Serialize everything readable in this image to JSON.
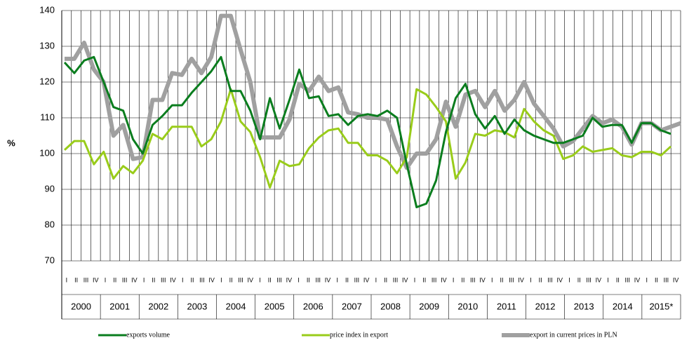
{
  "chart_data": {
    "type": "line",
    "y_label": "%",
    "categories": [
      "I",
      "II",
      "III",
      "IV",
      "I",
      "II",
      "III",
      "IV",
      "I",
      "II",
      "III",
      "IV",
      "I",
      "II",
      "III",
      "IV",
      "I",
      "II",
      "III",
      "IV",
      "I",
      "II",
      "III",
      "IV",
      "I",
      "II",
      "III",
      "IV",
      "I",
      "II",
      "III",
      "IV",
      "I",
      "II",
      "III",
      "IV",
      "I",
      "II",
      "III",
      "IV",
      "I",
      "II",
      "III",
      "IV",
      "I",
      "II",
      "III",
      "IV",
      "I",
      "II",
      "III",
      "IV",
      "I",
      "II",
      "III",
      "IV",
      "I",
      "II",
      "III",
      "IV",
      "I",
      "II",
      "III",
      "IV"
    ],
    "years": [
      "2000",
      "2001",
      "2002",
      "2003",
      "2004",
      "2005",
      "2006",
      "2007",
      "2008",
      "2009",
      "2010",
      "2011",
      "2012",
      "2013",
      "2014",
      "2015*"
    ],
    "ylim": [
      70,
      140
    ],
    "yticks": [
      70,
      80,
      90,
      100,
      110,
      120,
      130,
      140
    ],
    "grid": true,
    "series": [
      {
        "name": "exports volume",
        "color": "#0a7d1e",
        "width": 3,
        "values": [
          125.5,
          122.5,
          126,
          127,
          120,
          113,
          112,
          104,
          100,
          108,
          110.5,
          113.5,
          113.5,
          117,
          120,
          123,
          127,
          117.5,
          117.5,
          112,
          104,
          115.5,
          107,
          115,
          123.5,
          115.5,
          116,
          110.5,
          111,
          108,
          110.5,
          111,
          110.5,
          112,
          110,
          97,
          85,
          86,
          92.5,
          106,
          115.5,
          119.5,
          111,
          107,
          110.5,
          105.5,
          109.5,
          106.5,
          105,
          104,
          103,
          103,
          104,
          105,
          110,
          107.5,
          108,
          108,
          103,
          108.5,
          108.5,
          106.5,
          105.5,
          null
        ]
      },
      {
        "name": "price index in export",
        "color": "#99cc1a",
        "width": 3,
        "values": [
          101,
          103.5,
          103.5,
          97,
          100.5,
          93,
          96.5,
          94.5,
          98,
          105.5,
          104,
          107.5,
          107.5,
          107.5,
          102,
          104,
          109,
          118,
          109,
          106,
          99,
          90.5,
          98,
          96.5,
          97,
          101.5,
          104.5,
          106.5,
          107,
          103,
          103,
          99.5,
          99.5,
          98,
          94.5,
          99,
          118,
          116.5,
          113,
          109,
          93,
          97.5,
          105.5,
          105,
          106.5,
          106,
          104.5,
          112.5,
          109,
          106.5,
          105,
          98.5,
          99.5,
          102,
          100.5,
          101,
          101.5,
          99.5,
          99,
          100.5,
          100.5,
          99.5,
          102,
          null
        ]
      },
      {
        "name": "export in current prices in PLN",
        "color": "#a0a0a0",
        "width": 6,
        "values": [
          126.5,
          126.5,
          131,
          123.5,
          120,
          105,
          108,
          98.5,
          99,
          115,
          115,
          122.5,
          122,
          126.5,
          122.5,
          127,
          138.5,
          138.5,
          129,
          120,
          104.5,
          104.5,
          104.5,
          109.5,
          119.5,
          117.5,
          121.5,
          117.5,
          118.5,
          111.5,
          111,
          110,
          110,
          109.5,
          102,
          96,
          100,
          100,
          104,
          114.5,
          107.5,
          116.5,
          117.5,
          113,
          117.5,
          112,
          115,
          120,
          114,
          110.5,
          107,
          102,
          103.5,
          107,
          110.5,
          108.5,
          109.5,
          107.5,
          102.5,
          108.5,
          108.5,
          106.5,
          107.5,
          108.5
        ]
      }
    ]
  }
}
